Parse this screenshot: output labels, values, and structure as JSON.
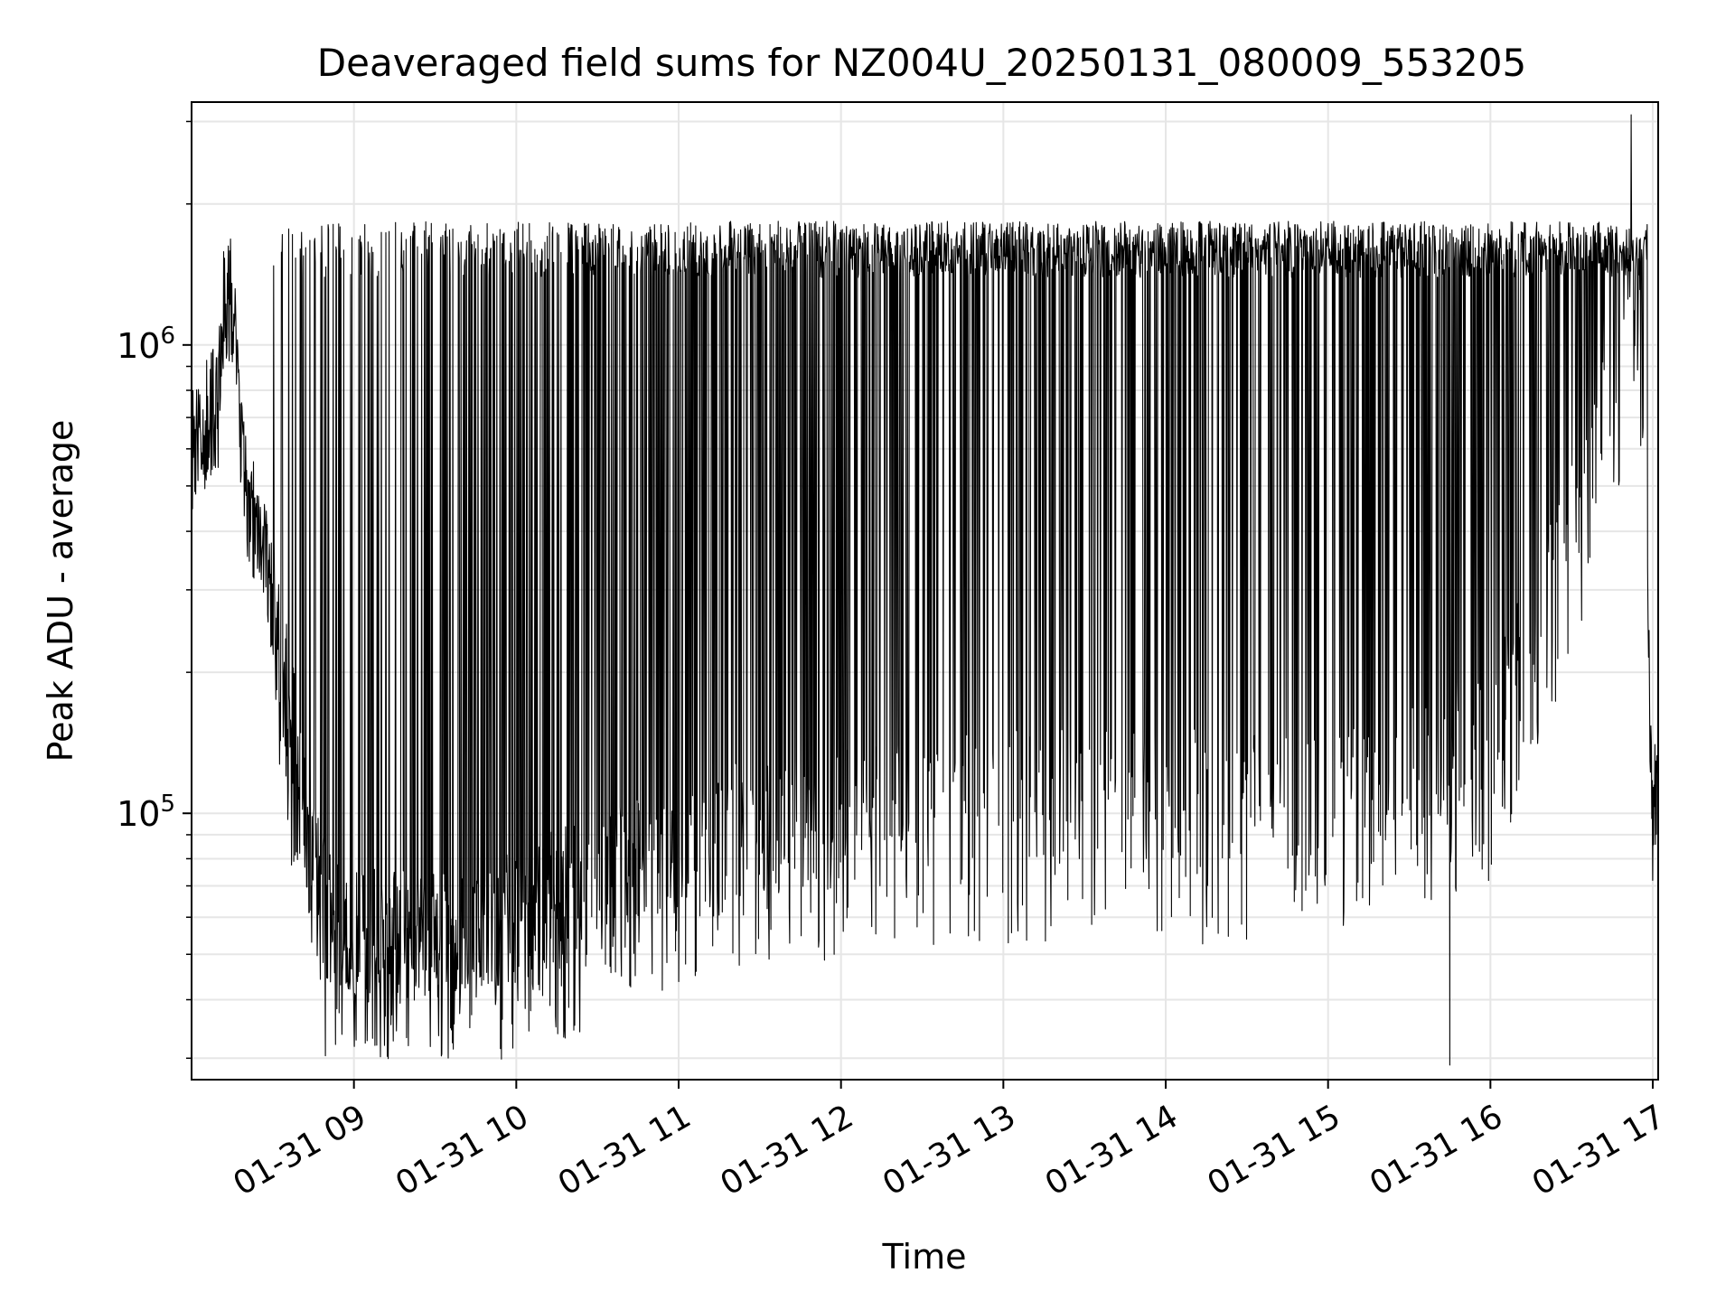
{
  "chart_data": {
    "type": "line",
    "title": "Deaveraged field sums for NZ004U_20250131_080009_553205",
    "xlabel": "Time",
    "ylabel": "Peak ADU - average",
    "yscale": "log",
    "grid": true,
    "legend": "none",
    "line_color": "#000000",
    "xlim": [
      "2025-01-31 08:00",
      "2025-01-31 17:02"
    ],
    "ylim": [
      27000,
      3300000
    ],
    "x_ticks": [
      "01-31 09",
      "01-31 10",
      "01-31 11",
      "01-31 12",
      "01-31 13",
      "01-31 14",
      "01-31 15",
      "01-31 16",
      "01-31 17"
    ],
    "x_tick_values": [
      "2025-01-31 09:00",
      "2025-01-31 10:00",
      "2025-01-31 11:00",
      "2025-01-31 12:00",
      "2025-01-31 13:00",
      "2025-01-31 14:00",
      "2025-01-31 15:00",
      "2025-01-31 16:00",
      "2025-01-31 17:00"
    ],
    "y_ticks": [
      {
        "base": "10",
        "exp": "5",
        "value": 100000
      },
      {
        "base": "10",
        "exp": "6",
        "value": 1000000
      }
    ],
    "series": [
      {
        "envelope_points": [
          {
            "x": "2025-01-31 08:00",
            "y": 600000
          },
          {
            "x": "2025-01-31 08:10",
            "y": 750000
          },
          {
            "x": "2025-01-31 08:12",
            "y": 1300000
          },
          {
            "x": "2025-01-31 08:15",
            "y": 1200000
          },
          {
            "x": "2025-01-31 08:20",
            "y": 500000
          },
          {
            "x": "2025-01-31 08:30",
            "y": 300000
          },
          {
            "x": "2025-01-31 08:40",
            "y": 120000
          },
          {
            "x": "2025-01-31 08:50",
            "y": 60000
          },
          {
            "x": "2025-01-31 09:00",
            "y": 55000
          },
          {
            "x": "2025-01-31 09:30",
            "y": 55000
          },
          {
            "x": "2025-01-31 10:00",
            "y": 60000
          },
          {
            "x": "2025-01-31 10:30",
            "y": 75000
          },
          {
            "x": "2025-01-31 11:00",
            "y": 90000
          },
          {
            "x": "2025-01-31 12:00",
            "y": 100000
          },
          {
            "x": "2025-01-31 13:00",
            "y": 110000
          },
          {
            "x": "2025-01-31 14:00",
            "y": 110000
          },
          {
            "x": "2025-01-31 15:00",
            "y": 110000
          },
          {
            "x": "2025-01-31 16:00",
            "y": 150000
          },
          {
            "x": "2025-01-31 16:30",
            "y": 400000
          },
          {
            "x": "2025-01-31 16:50",
            "y": 1100000
          },
          {
            "x": "2025-01-31 16:55",
            "y": 1500000
          },
          {
            "x": "2025-01-31 17:00",
            "y": 90000
          },
          {
            "x": "2025-01-31 17:02",
            "y": 140000
          }
        ],
        "spike_ceiling": 1600000,
        "spike_floor": 50000,
        "peak_max": {
          "x": "2025-01-31 16:52",
          "y": 3100000
        },
        "peak_min": {
          "x": "2025-01-31 15:45",
          "y": 29000
        }
      }
    ]
  }
}
